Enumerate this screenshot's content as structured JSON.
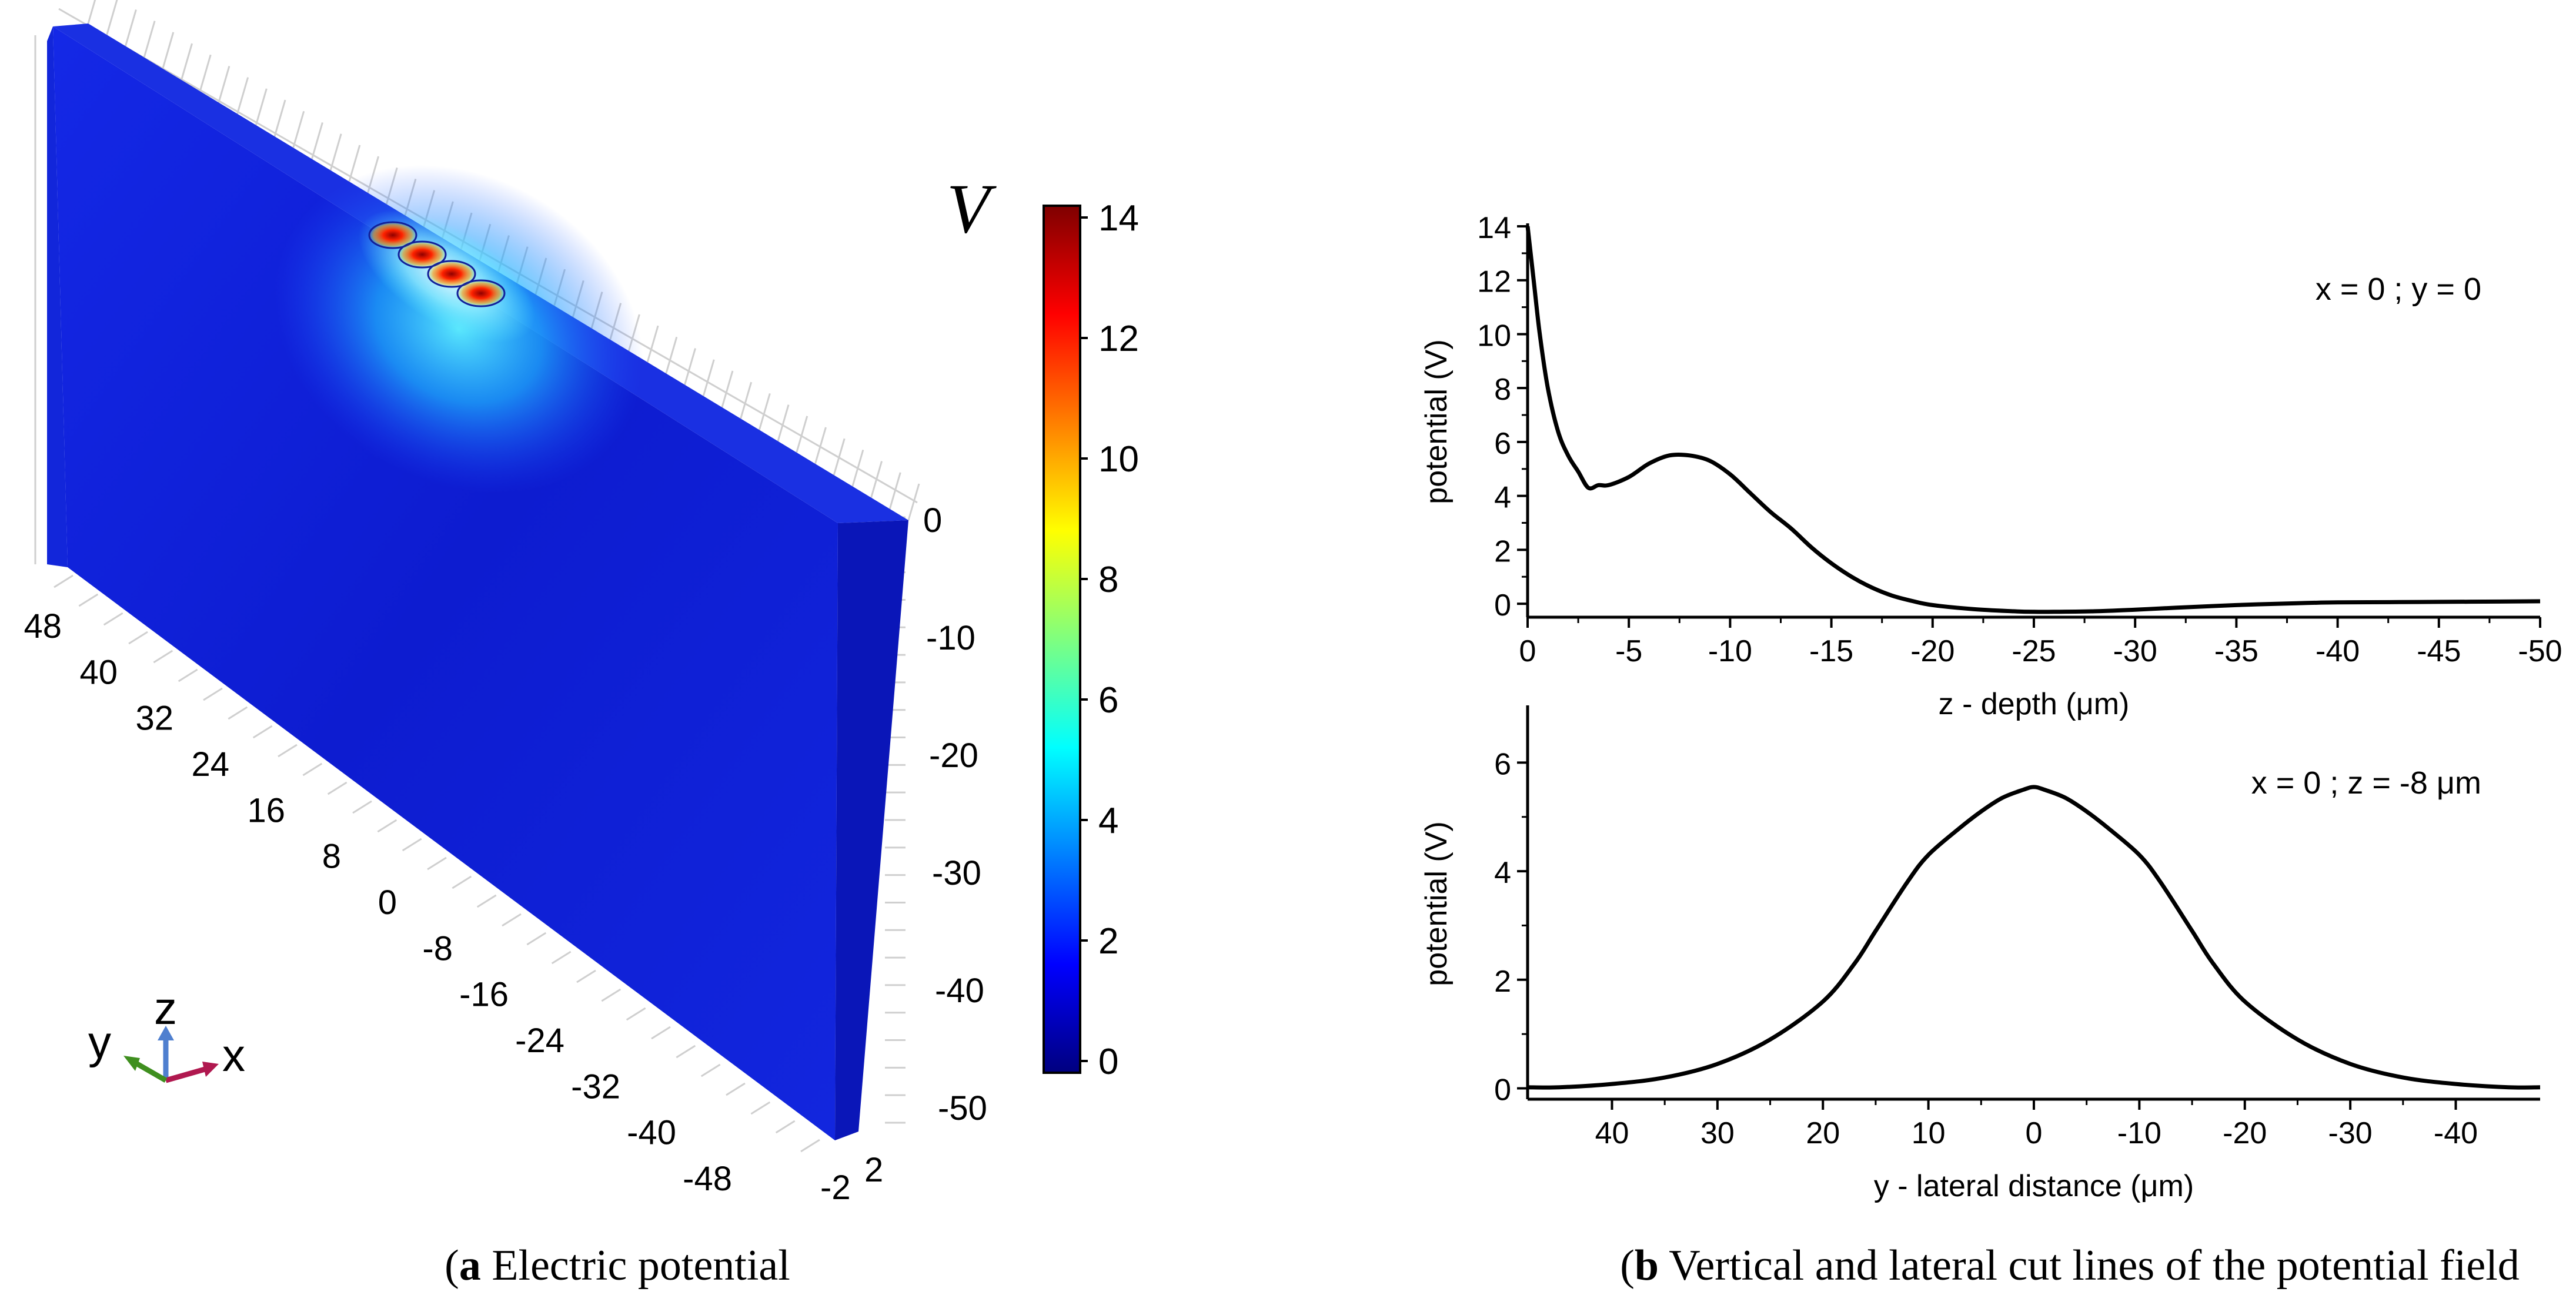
{
  "panel_a": {
    "caption_letter": "a",
    "caption_text": " Electric potential",
    "unit_symbol": "V",
    "colorbar": {
      "ticks": [
        "14",
        "12",
        "10",
        "8",
        "6",
        "4",
        "2",
        "0"
      ],
      "range": [
        0,
        14
      ],
      "colors": [
        "#00007f",
        "#0000ff",
        "#007fff",
        "#00ffff",
        "#7fff7f",
        "#ffff00",
        "#ff7f00",
        "#ff0000",
        "#7f0000"
      ]
    },
    "y_axis_ticks": [
      "48",
      "40",
      "32",
      "24",
      "16",
      "8",
      "0",
      "-8",
      "-16",
      "-24",
      "-32",
      "-40",
      "-48"
    ],
    "z_axis_ticks": [
      "0",
      "-10",
      "-20",
      "-30",
      "-40",
      "-50"
    ],
    "x_axis_ticks": [
      "-2",
      "2"
    ],
    "triad": {
      "x": "x",
      "y": "y",
      "z": "z",
      "x_color": "#b0184f",
      "y_color": "#3f8f1f",
      "z_color": "#4f7fcf"
    },
    "colors": {
      "slab": "#0f1fd8",
      "slab_side": "#0a14b0",
      "slab_top": "#1830e0"
    }
  },
  "panel_b": {
    "caption_letter": "b",
    "caption_text": " Vertical and lateral cut lines of the potential field"
  },
  "chart_data": [
    {
      "type": "line",
      "title": "",
      "annotation": "x = 0 ; y = 0",
      "xlabel": "z - depth (μm)",
      "ylabel": "potential (V)",
      "xlim": [
        0,
        -50
      ],
      "ylim": [
        -0.5,
        14
      ],
      "xticks": [
        0,
        -5,
        -10,
        -15,
        -20,
        -25,
        -30,
        -35,
        -40,
        -45,
        -50
      ],
      "yticks": [
        0,
        2,
        4,
        6,
        8,
        10,
        12,
        14
      ],
      "x": [
        0,
        -0.3,
        -0.6,
        -1,
        -1.5,
        -2,
        -2.5,
        -3,
        -3.5,
        -4,
        -5,
        -6,
        -7,
        -8,
        -9,
        -10,
        -11,
        -12,
        -13,
        -14,
        -15,
        -16,
        -17,
        -18,
        -19,
        -20,
        -22,
        -24,
        -25,
        -26,
        -28,
        -30,
        -32,
        -35,
        -38,
        -40,
        -43,
        -45,
        -48,
        -50
      ],
      "values": [
        14,
        12,
        10,
        8,
        6.4,
        5.5,
        4.9,
        4.3,
        4.4,
        4.4,
        4.7,
        5.2,
        5.5,
        5.5,
        5.3,
        4.8,
        4.1,
        3.4,
        2.8,
        2.1,
        1.5,
        1.0,
        0.6,
        0.3,
        0.1,
        -0.05,
        -0.2,
        -0.28,
        -0.3,
        -0.3,
        -0.28,
        -0.22,
        -0.15,
        -0.05,
        0.02,
        0.05,
        0.06,
        0.07,
        0.08,
        0.09
      ]
    },
    {
      "type": "line",
      "title": "",
      "annotation": "x = 0 ; z = -8 μm",
      "xlabel": "y - lateral distance (μm)",
      "ylabel": "potential (V)",
      "xlim": [
        48,
        -48
      ],
      "ylim": [
        -0.2,
        7
      ],
      "xticks": [
        40,
        30,
        20,
        10,
        0,
        -10,
        -20,
        -30,
        -40
      ],
      "yticks": [
        0,
        2,
        4,
        6
      ],
      "x": [
        48,
        45,
        40,
        35,
        30,
        25,
        20,
        17,
        15,
        12,
        10,
        7,
        5,
        3,
        1,
        0,
        -1,
        -3,
        -5,
        -7,
        -10,
        -12,
        -15,
        -17,
        -20,
        -25,
        -30,
        -35,
        -40,
        -45,
        -48
      ],
      "values": [
        0.02,
        0.02,
        0.08,
        0.2,
        0.45,
        0.9,
        1.6,
        2.3,
        2.9,
        3.8,
        4.3,
        4.8,
        5.1,
        5.35,
        5.5,
        5.55,
        5.5,
        5.35,
        5.1,
        4.8,
        4.3,
        3.8,
        2.9,
        2.3,
        1.6,
        0.9,
        0.45,
        0.2,
        0.08,
        0.02,
        0.02
      ]
    }
  ]
}
